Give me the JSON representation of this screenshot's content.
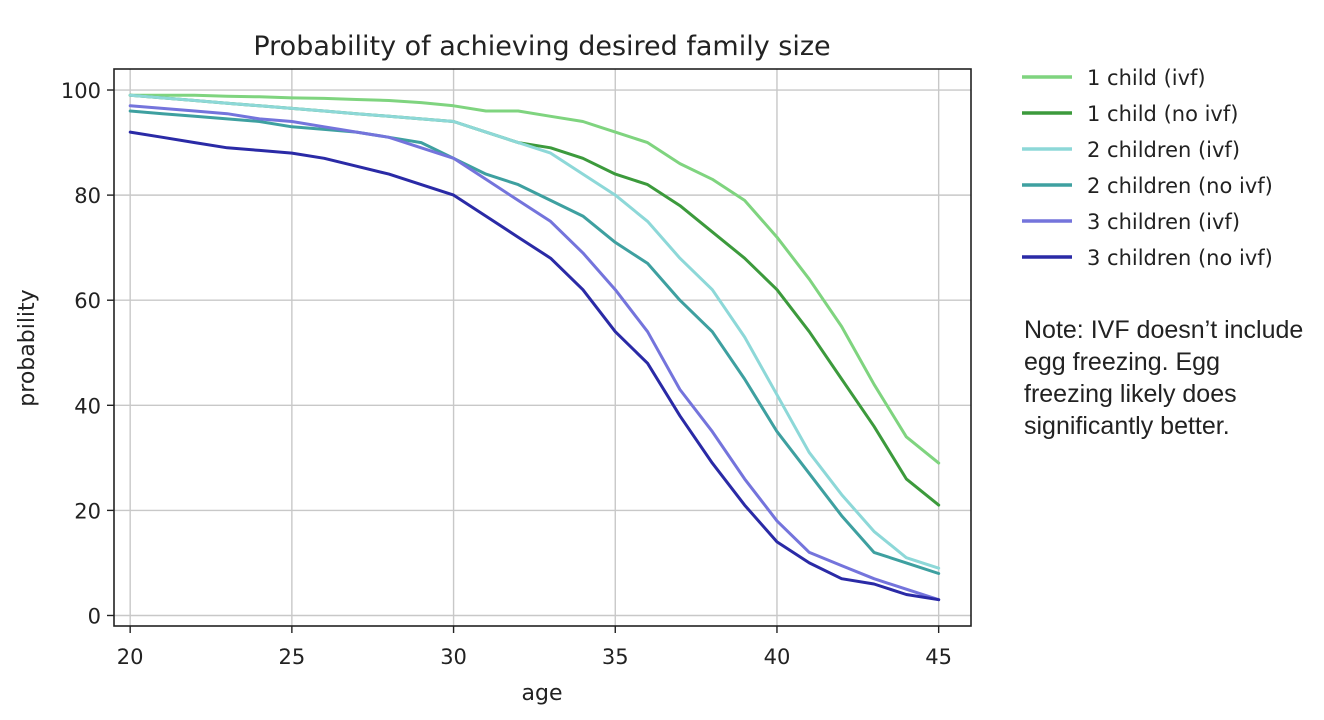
{
  "chart_data": {
    "type": "line",
    "title": "Probability of achieving desired family size",
    "xlabel": "age",
    "ylabel": "probability",
    "xlim": [
      19.5,
      46
    ],
    "ylim": [
      -2,
      104
    ],
    "xticks": [
      20,
      25,
      30,
      35,
      40,
      45
    ],
    "yticks": [
      0,
      20,
      40,
      60,
      80,
      100
    ],
    "grid": true,
    "legend_position": "right",
    "x": [
      20,
      21,
      22,
      23,
      24,
      25,
      26,
      27,
      28,
      29,
      30,
      31,
      32,
      33,
      34,
      35,
      36,
      37,
      38,
      39,
      40,
      41,
      42,
      43,
      44,
      45
    ],
    "series": [
      {
        "name": "1 child (ivf)",
        "color": "#7fd47f",
        "values": [
          99,
          99,
          99,
          98.8,
          98.7,
          98.5,
          98.4,
          98.2,
          98,
          97.6,
          97,
          96,
          96,
          95,
          94,
          92,
          90,
          86,
          83,
          79,
          72,
          64,
          55,
          44,
          34,
          29
        ]
      },
      {
        "name": "1 child (no ivf)",
        "color": "#3c9a3c",
        "values": [
          99,
          98.5,
          98,
          97.5,
          97,
          96.5,
          96,
          95.5,
          95,
          94.5,
          94,
          92,
          90,
          89,
          87,
          84,
          82,
          78,
          73,
          68,
          62,
          54,
          45,
          36,
          26,
          21
        ]
      },
      {
        "name": "2 children (ivf)",
        "color": "#8dd8d8",
        "values": [
          99,
          98.5,
          98,
          97.5,
          97,
          96.5,
          96,
          95.5,
          95,
          94.5,
          94,
          92,
          90,
          88,
          84,
          80,
          75,
          68,
          62,
          53,
          42,
          31,
          23,
          16,
          11,
          9
        ]
      },
      {
        "name": "2 children (no ivf)",
        "color": "#3ea0a0",
        "values": [
          96,
          95.5,
          95,
          94.5,
          94,
          93,
          92.5,
          92,
          91,
          90,
          87,
          84,
          82,
          79,
          76,
          71,
          67,
          60,
          54,
          45,
          35,
          27,
          19,
          12,
          10,
          8
        ]
      },
      {
        "name": "3 children (ivf)",
        "color": "#7474dc",
        "values": [
          97,
          96.5,
          96,
          95.5,
          94.5,
          94,
          93,
          92,
          91,
          89,
          87,
          83,
          79,
          75,
          69,
          62,
          54,
          43,
          35,
          26,
          18,
          12,
          9.5,
          7,
          5,
          3
        ]
      },
      {
        "name": "3 children (no ivf)",
        "color": "#2a2aa6",
        "values": [
          92,
          91,
          90,
          89,
          88.5,
          88,
          87,
          85.5,
          84,
          82,
          80,
          76,
          72,
          68,
          62,
          54,
          48,
          38,
          29,
          21,
          14,
          10,
          7,
          6,
          4,
          3
        ]
      }
    ]
  },
  "note": {
    "text": "Note: IVF doesn’t include egg freezing. Egg freezing likely does significantly better."
  }
}
